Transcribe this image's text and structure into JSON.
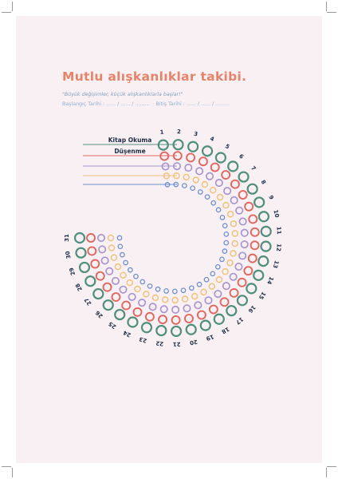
{
  "title": "Mutlu alışkanlıklar takibi.",
  "quote": "\"Büyük değişimler, küçük alışkanlıklarla başlar!\"",
  "dates": {
    "start": "Başlangıç Tarihi : ...... / ...... / .........",
    "end": "Bitiş Tarihi : ...... / ...... / ........."
  },
  "habits": [
    {
      "label": "Kitap Okuma",
      "color": "#4f8f7c"
    },
    {
      "label": "Düşenme",
      "color": "#e0675f"
    },
    {
      "label": "",
      "color": "#a995cf"
    },
    {
      "label": "",
      "color": "#f1c27d"
    },
    {
      "label": "",
      "color": "#6c8fcf"
    }
  ],
  "days": [
    "1",
    "2",
    "3",
    "4",
    "5",
    "6",
    "7",
    "8",
    "9",
    "10",
    "11",
    "12",
    "13",
    "14",
    "15",
    "16",
    "17",
    "18",
    "19",
    "20",
    "21",
    "22",
    "23",
    "24",
    "25",
    "26",
    "27",
    "28",
    "29",
    "30",
    "31"
  ],
  "text_color": "#1f2d45"
}
